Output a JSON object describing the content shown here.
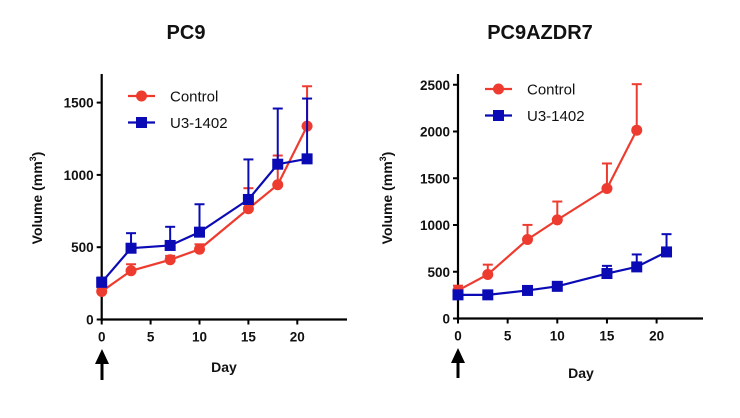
{
  "chart_data": [
    {
      "type": "line",
      "title": "PC9",
      "xlabel": "Day",
      "ylabel": "Volume (mm³)",
      "ylabel_base": "Volume (mm",
      "ylabel_sup": "3",
      "ylabel_end": ")",
      "xlim": [
        0,
        25
      ],
      "ylim": [
        0,
        1700
      ],
      "xticks": [
        0,
        5,
        10,
        15,
        20
      ],
      "yticks": [
        0,
        500,
        1000,
        1500
      ],
      "grid": false,
      "legend_position": "top-left",
      "annotation": "arrow at day 0 (treatment start)",
      "series": [
        {
          "name": "Control",
          "color": "#ee3b2f",
          "marker": "circle",
          "x": [
            0,
            3,
            7,
            10,
            15,
            18,
            21
          ],
          "y": [
            194,
            337,
            413,
            486,
            766,
            932,
            1337
          ],
          "error_upper": [
            220,
            382,
            440,
            520,
            908,
            1134,
            1613
          ]
        },
        {
          "name": "U3-1402",
          "color": "#0b0bb5",
          "marker": "square",
          "x": [
            0,
            3,
            7,
            10,
            15,
            18,
            21
          ],
          "y": [
            257,
            493,
            512,
            604,
            830,
            1074,
            1111
          ],
          "error_upper": [
            290,
            597,
            641,
            797,
            1107,
            1459,
            1528
          ]
        }
      ]
    },
    {
      "type": "line",
      "title": "PC9AZDR7",
      "xlabel": "Day",
      "ylabel": "Volume (mm³)",
      "ylabel_base": "Volume (mm",
      "ylabel_sup": "3",
      "ylabel_end": ")",
      "xlim": [
        0,
        25
      ],
      "ylim": [
        0,
        2600
      ],
      "xticks": [
        0,
        5,
        10,
        15,
        20
      ],
      "yticks": [
        0,
        500,
        1000,
        1500,
        2000,
        2500
      ],
      "grid": false,
      "legend_position": "top-left",
      "annotation": "arrow at day 0 (treatment start)",
      "series": [
        {
          "name": "Control",
          "color": "#ee3b2f",
          "marker": "circle",
          "x": [
            0,
            3,
            7,
            10,
            15,
            18
          ],
          "y": [
            300,
            471,
            845,
            1055,
            1390,
            2014
          ],
          "error_upper": [
            351,
            576,
            1001,
            1251,
            1658,
            2506
          ]
        },
        {
          "name": "U3-1402",
          "color": "#0b0bb5",
          "marker": "square",
          "x": [
            0,
            3,
            7,
            10,
            15,
            18,
            21
          ],
          "y": [
            253,
            253,
            300,
            344,
            481,
            552,
            712
          ],
          "error_upper": [
            275,
            270,
            320,
            365,
            563,
            685,
            902
          ]
        }
      ]
    }
  ]
}
